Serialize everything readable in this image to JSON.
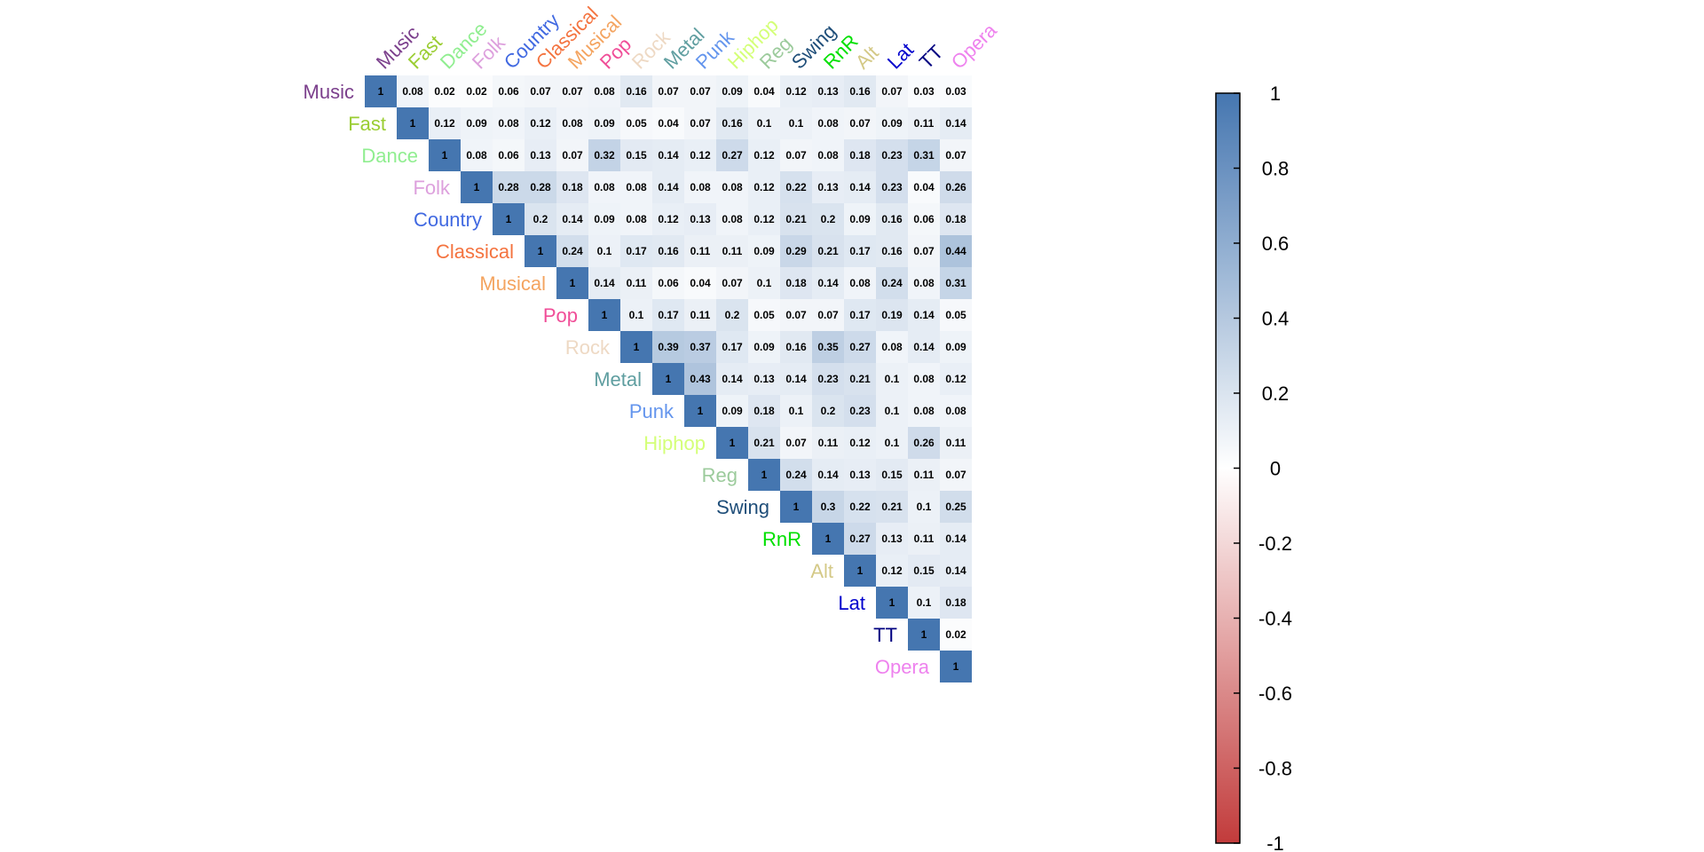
{
  "chart_data": {
    "type": "heatmap",
    "variables": [
      {
        "label": "Music",
        "color": "#7B3F8C"
      },
      {
        "label": "Fast",
        "color": "#9ACD32"
      },
      {
        "label": "Dance",
        "color": "#90EE90"
      },
      {
        "label": "Folk",
        "color": "#DDA0DD"
      },
      {
        "label": "Country",
        "color": "#4169E1"
      },
      {
        "label": "Classical",
        "color": "#F4733F"
      },
      {
        "label": "Musical",
        "color": "#F4A460"
      },
      {
        "label": "Pop",
        "color": "#F04E98"
      },
      {
        "label": "Rock",
        "color": "#EED9C4"
      },
      {
        "label": "Metal",
        "color": "#5F9EA0"
      },
      {
        "label": "Punk",
        "color": "#6495ED"
      },
      {
        "label": "Hiphop",
        "color": "#D4FF78"
      },
      {
        "label": "Reg",
        "color": "#9CCB9C"
      },
      {
        "label": "Swing",
        "color": "#1F4E79"
      },
      {
        "label": "RnR",
        "color": "#00E000"
      },
      {
        "label": "Alt",
        "color": "#D4C987"
      },
      {
        "label": "Lat",
        "color": "#0000CD"
      },
      {
        "label": "TT",
        "color": "#000080"
      },
      {
        "label": "Opera",
        "color": "#EE82EE"
      }
    ],
    "upper_triangle": [
      [
        "1",
        "0.08",
        "0.02",
        "0.02",
        "0.06",
        "0.07",
        "0.07",
        "0.08",
        "0.16",
        "0.07",
        "0.07",
        "0.09",
        "0.04",
        "0.12",
        "0.13",
        "0.16",
        "0.07",
        "0.03",
        "0.03"
      ],
      [
        "1",
        "0.12",
        "0.09",
        "0.08",
        "0.12",
        "0.08",
        "0.09",
        "0.05",
        "0.04",
        "0.07",
        "0.16",
        "0.1",
        "0.1",
        "0.08",
        "0.07",
        "0.09",
        "0.11",
        "0.14"
      ],
      [
        "1",
        "0.08",
        "0.06",
        "0.13",
        "0.07",
        "0.32",
        "0.15",
        "0.14",
        "0.12",
        "0.27",
        "0.12",
        "0.07",
        "0.08",
        "0.18",
        "0.23",
        "0.31",
        "0.07"
      ],
      [
        "1",
        "0.28",
        "0.28",
        "0.18",
        "0.08",
        "0.08",
        "0.14",
        "0.08",
        "0.08",
        "0.12",
        "0.22",
        "0.13",
        "0.14",
        "0.23",
        "0.04",
        "0.26"
      ],
      [
        "1",
        "0.2",
        "0.14",
        "0.09",
        "0.08",
        "0.12",
        "0.13",
        "0.08",
        "0.12",
        "0.21",
        "0.2",
        "0.09",
        "0.16",
        "0.06",
        "0.18"
      ],
      [
        "1",
        "0.24",
        "0.1",
        "0.17",
        "0.16",
        "0.11",
        "0.11",
        "0.09",
        "0.29",
        "0.21",
        "0.17",
        "0.16",
        "0.07",
        "0.44"
      ],
      [
        "1",
        "0.14",
        "0.11",
        "0.06",
        "0.04",
        "0.07",
        "0.1",
        "0.18",
        "0.14",
        "0.08",
        "0.24",
        "0.08",
        "0.31"
      ],
      [
        "1",
        "0.1",
        "0.17",
        "0.11",
        "0.2",
        "0.05",
        "0.07",
        "0.07",
        "0.17",
        "0.19",
        "0.14",
        "0.05"
      ],
      [
        "1",
        "0.39",
        "0.37",
        "0.17",
        "0.09",
        "0.16",
        "0.35",
        "0.27",
        "0.08",
        "0.14",
        "0.09"
      ],
      [
        "1",
        "0.43",
        "0.14",
        "0.13",
        "0.14",
        "0.23",
        "0.21",
        "0.1",
        "0.08",
        "0.12"
      ],
      [
        "1",
        "0.09",
        "0.18",
        "0.1",
        "0.2",
        "0.23",
        "0.1",
        "0.08",
        "0.08"
      ],
      [
        "1",
        "0.21",
        "0.07",
        "0.11",
        "0.12",
        "0.1",
        "0.26",
        "0.11"
      ],
      [
        "1",
        "0.24",
        "0.14",
        "0.13",
        "0.15",
        "0.11",
        "0.07"
      ],
      [
        "1",
        "0.3",
        "0.22",
        "0.21",
        "0.1",
        "0.25"
      ],
      [
        "1",
        "0.27",
        "0.13",
        "0.11",
        "0.14"
      ],
      [
        "1",
        "0.12",
        "0.15",
        "0.14"
      ],
      [
        "1",
        "0.1",
        "0.18"
      ],
      [
        "1",
        "0.02"
      ],
      [
        "1"
      ]
    ],
    "color_scale": {
      "range": [
        -1,
        1
      ],
      "low_color": "#C23B3B",
      "mid_color": "#FFFFFF",
      "high_color": "#4576B0",
      "ticks": [
        "1",
        "0.8",
        "0.6",
        "0.4",
        "0.2",
        "0",
        "-0.2",
        "-0.4",
        "-0.6",
        "-0.8",
        "-1"
      ]
    },
    "grid": false,
    "legend_position": "right"
  }
}
